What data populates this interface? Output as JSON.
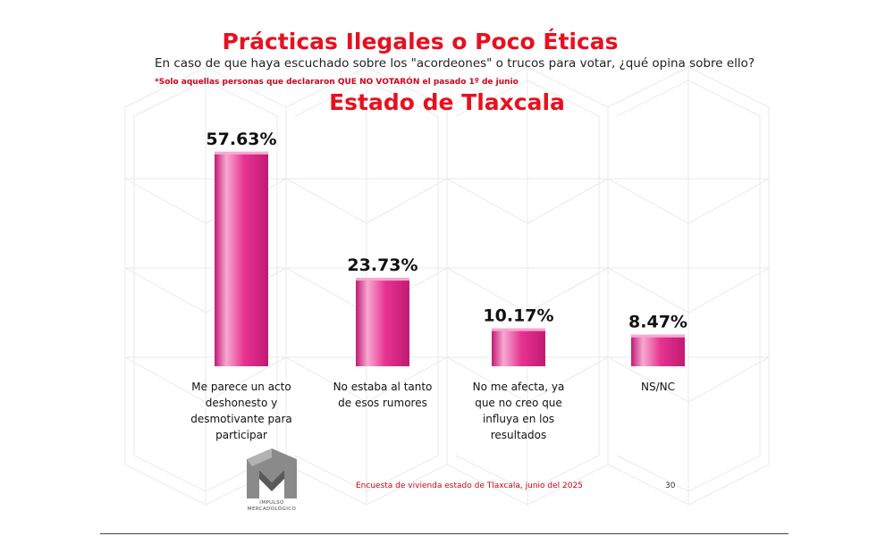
{
  "header": {
    "title": "Prácticas Ilegales o Poco Éticas",
    "question": "En caso de que haya escuchado sobre los \"acordeones\" o trucos para votar, ¿qué opina sobre ello?",
    "note": "*Solo aquellas personas que declararon QUE NO VOTARÓN el pasado 1º de junio",
    "subtitle": "Estado de Tlaxcala"
  },
  "colors": {
    "title": "#e8101f",
    "note": "#d0021b",
    "bar": "#e6338f",
    "bar_light": "#f7a9d2",
    "bar_dark": "#c21a73"
  },
  "chart_data": {
    "type": "bar",
    "categories": [
      "Me parece un acto deshonesto y desmotivante para participar",
      "No estaba al tanto de esos rumores",
      "No me afecta, ya que no creo que influya en los resultados",
      "NS/NC"
    ],
    "values": [
      57.63,
      23.73,
      10.17,
      8.47
    ],
    "value_labels": [
      "57.63%",
      "23.73%",
      "10.17%",
      "8.47%"
    ],
    "ylim": [
      0,
      60
    ],
    "grid": false,
    "legend": "none"
  },
  "footer": {
    "source": "Encuesta de vivienda estado de Tlaxcala, junio  del 2025",
    "page_number": "30",
    "logo_text": "IMPULSO MERCADOLÓGICO"
  }
}
